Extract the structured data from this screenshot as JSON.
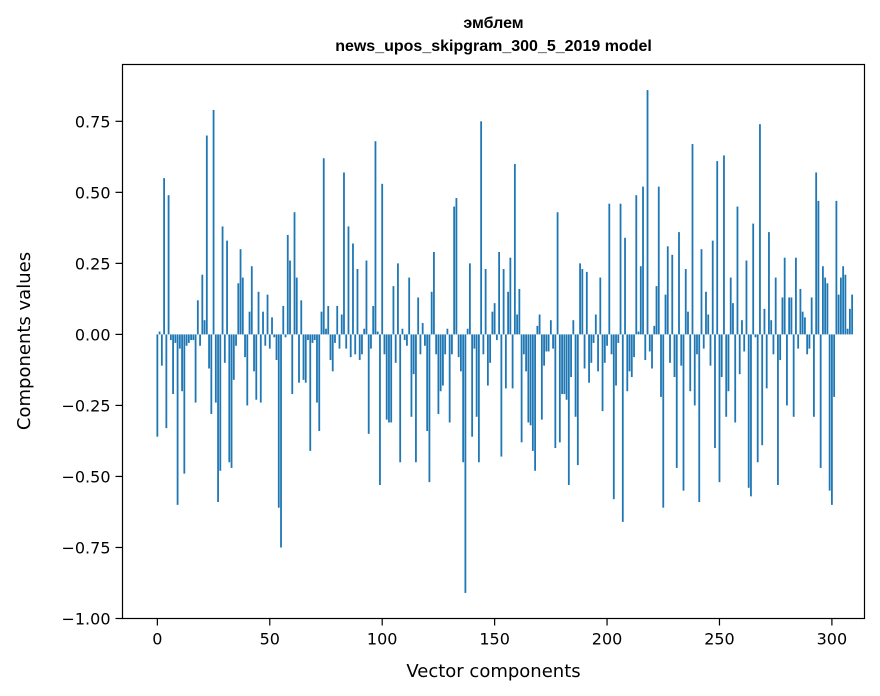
{
  "chart_data": {
    "type": "bar",
    "title_lines": [
      "эмблем",
      "news_upos_skipgram_300_5_2019 model"
    ],
    "xlabel": "Vector components",
    "ylabel": "Components values",
    "xlim": [
      -15.5,
      314.5
    ],
    "ylim": [
      -1.0,
      0.95
    ],
    "xticks": [
      0,
      50,
      100,
      150,
      200,
      250,
      300
    ],
    "xtick_labels": [
      "0",
      "50",
      "100",
      "150",
      "200",
      "250",
      "300"
    ],
    "yticks": [
      -1.0,
      -0.75,
      -0.5,
      -0.25,
      0.0,
      0.25,
      0.5,
      0.75
    ],
    "ytick_labels": [
      "−1.00",
      "−0.75",
      "−0.50",
      "−0.25",
      "0.00",
      "0.25",
      "0.50",
      "0.75"
    ],
    "grid": false,
    "bar_color": "#1f77b4",
    "series": [
      {
        "values": [
          -0.36,
          0.01,
          -0.11,
          0.55,
          -0.33,
          0.49,
          -0.02,
          -0.21,
          -0.03,
          -0.6,
          -0.05,
          -0.2,
          -0.49,
          -0.04,
          -0.03,
          -0.02,
          -0.02,
          -0.24,
          0.12,
          -0.04,
          0.21,
          0.05,
          0.7,
          -0.12,
          -0.28,
          0.79,
          -0.24,
          -0.59,
          -0.48,
          0.38,
          -0.1,
          0.33,
          -0.45,
          -0.47,
          -0.16,
          -0.04,
          0.18,
          0.3,
          0.2,
          -0.08,
          -0.25,
          0.08,
          0.24,
          -0.13,
          -0.23,
          0.15,
          -0.24,
          0.08,
          -0.04,
          0.14,
          -0.05,
          0.06,
          -0.01,
          -0.09,
          -0.61,
          -0.75,
          0.1,
          -0.01,
          0.35,
          0.26,
          -0.21,
          0.43,
          0.2,
          -0.17,
          0.12,
          -0.16,
          -0.17,
          -0.02,
          -0.41,
          -0.03,
          -0.02,
          -0.24,
          -0.34,
          0.08,
          0.62,
          0.02,
          0.1,
          -0.09,
          -0.13,
          -0.03,
          0.1,
          -0.05,
          0.07,
          0.57,
          -0.05,
          0.38,
          -0.08,
          0.32,
          -0.07,
          0.23,
          -0.09,
          -0.07,
          0.02,
          0.26,
          -0.35,
          -0.05,
          0.1,
          0.68,
          0.01,
          -0.53,
          0.53,
          -0.07,
          -0.3,
          -0.31,
          -0.31,
          0.17,
          -0.1,
          0.25,
          -0.45,
          0.02,
          -0.02,
          -0.04,
          0.2,
          -0.29,
          -0.14,
          -0.45,
          0.13,
          -0.07,
          0.04,
          -0.04,
          -0.34,
          -0.52,
          0.15,
          0.29,
          -0.07,
          -0.28,
          -0.2,
          -0.18,
          -0.07,
          0.02,
          -0.31,
          -0.07,
          0.45,
          0.48,
          -0.08,
          -0.13,
          -0.45,
          -0.91,
          0.02,
          0.25,
          -0.36,
          -0.05,
          -0.29,
          -0.45,
          0.75,
          -0.07,
          0.23,
          -0.18,
          -0.1,
          0.08,
          0.11,
          -0.02,
          0.29,
          -0.43,
          0.23,
          -0.19,
          0.15,
          0.27,
          -0.19,
          0.6,
          0.07,
          0.16,
          -0.38,
          -0.07,
          -0.13,
          -0.31,
          -0.32,
          -0.41,
          -0.48,
          0.03,
          0.07,
          -0.3,
          -0.11,
          -0.06,
          -0.06,
          0.05,
          -0.05,
          -0.4,
          0.43,
          -0.38,
          -0.21,
          -0.21,
          -0.23,
          -0.53,
          -0.15,
          0.05,
          -0.29,
          -0.46,
          0.25,
          0.23,
          -0.12,
          0.22,
          -0.17,
          -0.1,
          -0.03,
          0.07,
          -0.13,
          0.2,
          -0.27,
          -0.1,
          -0.04,
          0.46,
          -0.07,
          -0.58,
          -0.18,
          -0.03,
          0.46,
          -0.66,
          0.34,
          -0.2,
          -0.13,
          -0.15,
          -0.08,
          0.49,
          0.01,
          0.24,
          0.52,
          -0.09,
          0.86,
          -0.06,
          -0.12,
          0.03,
          0.17,
          0.52,
          -0.22,
          -0.61,
          0.14,
          0.31,
          -0.1,
          0.28,
          -0.15,
          -0.47,
          0.36,
          -0.11,
          -0.55,
          0.23,
          0.08,
          -0.2,
          0.67,
          -0.25,
          -0.07,
          -0.59,
          0.3,
          -0.05,
          0.15,
          0.07,
          -0.11,
          0.33,
          -0.4,
          0.61,
          -0.52,
          -0.15,
          0.63,
          -0.29,
          -0.2,
          0.2,
          0.11,
          -0.31,
          0.45,
          -0.14,
          0.05,
          -0.06,
          0.26,
          -0.54,
          -0.57,
          0.39,
          -0.01,
          -0.45,
          0.74,
          -0.39,
          0.09,
          -0.19,
          0.36,
          0.05,
          -0.07,
          0.2,
          -0.53,
          -0.09,
          0.13,
          0.27,
          -0.25,
          0.13,
          0.13,
          -0.29,
          0.27,
          -0.05,
          0.16,
          0.08,
          0.06,
          -0.07,
          -0.05,
          0.13,
          -0.29,
          0.57,
          0.47,
          -0.47,
          0.24,
          0.2,
          0.18,
          -0.55,
          -0.6,
          -0.22,
          0.47,
          0.14,
          0.2,
          0.24,
          0.21,
          0.02,
          0.09,
          0.14
        ]
      }
    ]
  }
}
